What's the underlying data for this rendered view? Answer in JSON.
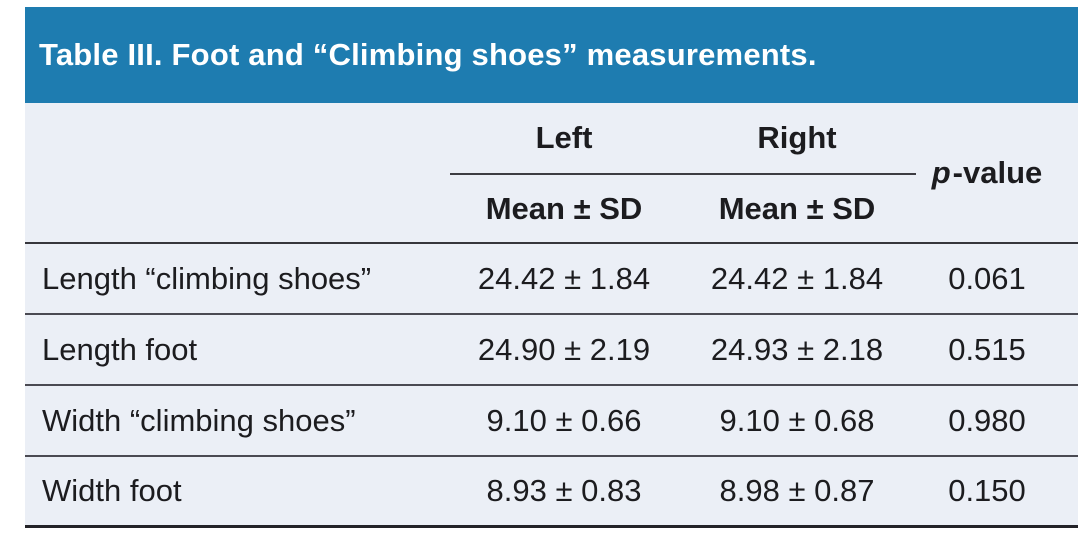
{
  "title": "Table III. Foot and “Climbing shoes” measurements.",
  "colors": {
    "title_bar_bg": "#1e7cb0",
    "title_text": "#ffffff",
    "table_bg": "#ebeff6",
    "body_text": "#1c1c1f",
    "rule_dark": "#36363c"
  },
  "header": {
    "left_label": "Left",
    "right_label": "Right",
    "sub_label": "Mean ± SD",
    "p_italic": "p",
    "p_rest": "-value"
  },
  "rows": [
    {
      "label": "Length “climbing shoes”",
      "left_mean_sd": "24.42 ± 1.84",
      "right_mean_sd": "24.42 ± 1.84",
      "p_value": "0.061"
    },
    {
      "label": "Length foot",
      "left_mean_sd": "24.90 ± 2.19",
      "right_mean_sd": "24.93 ± 2.18",
      "p_value": "0.515"
    },
    {
      "label": "Width “climbing shoes”",
      "left_mean_sd": "9.10 ± 0.66",
      "right_mean_sd": "9.10 ± 0.68",
      "p_value": "0.980"
    },
    {
      "label": "Width foot",
      "left_mean_sd": "8.93 ± 0.83",
      "right_mean_sd": "8.98 ± 0.87",
      "p_value": "0.150"
    }
  ]
}
